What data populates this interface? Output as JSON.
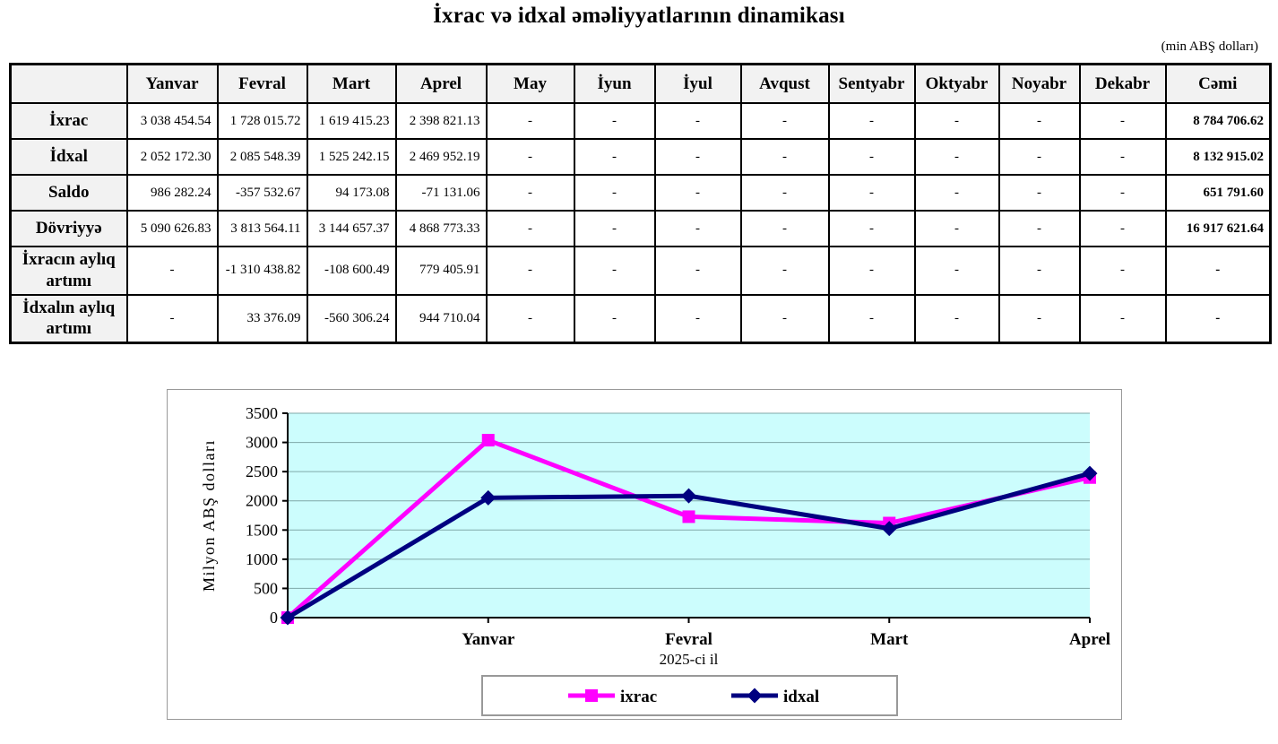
{
  "title": "İxrac və idxal əməliyyatlarının dinamikası",
  "unit_note": "(min ABŞ dolları)",
  "table": {
    "columns": [
      "",
      "Yanvar",
      "Fevral",
      "Mart",
      "Aprel",
      "May",
      "İyun",
      "İyul",
      "Avqust",
      "Sentyabr",
      "Oktyabr",
      "Noyabr",
      "Dekabr",
      "Cəmi"
    ],
    "rows": [
      {
        "label": "İxrac",
        "cells": [
          "3 038 454.54",
          "1 728 015.72",
          "1 619 415.23",
          "2 398 821.13",
          "-",
          "-",
          "-",
          "-",
          "-",
          "-",
          "-",
          "-",
          "8 784 706.62"
        ]
      },
      {
        "label": "İdxal",
        "cells": [
          "2 052 172.30",
          "2 085 548.39",
          "1 525 242.15",
          "2 469 952.19",
          "-",
          "-",
          "-",
          "-",
          "-",
          "-",
          "-",
          "-",
          "8 132 915.02"
        ]
      },
      {
        "label": "Saldo",
        "cells": [
          "986 282.24",
          "-357 532.67",
          "94 173.08",
          "-71 131.06",
          "-",
          "-",
          "-",
          "-",
          "-",
          "-",
          "-",
          "-",
          "651 791.60"
        ]
      },
      {
        "label": "Dövriyyə",
        "cells": [
          "5 090 626.83",
          "3 813 564.11",
          "3 144 657.37",
          "4 868 773.33",
          "-",
          "-",
          "-",
          "-",
          "-",
          "-",
          "-",
          "-",
          "16 917 621.64"
        ]
      },
      {
        "label": "İxracın aylıq artımı",
        "cells": [
          "-",
          "-1 310 438.82",
          "-108 600.49",
          "779 405.91",
          "-",
          "-",
          "-",
          "-",
          "-",
          "-",
          "-",
          "-",
          "-"
        ]
      },
      {
        "label": "İdxalın aylıq artımı",
        "cells": [
          "-",
          "33 376.09",
          "-560 306.24",
          "944 710.04",
          "-",
          "-",
          "-",
          "-",
          "-",
          "-",
          "-",
          "-",
          "-"
        ]
      }
    ]
  },
  "chart_data": {
    "type": "line",
    "x_categories": [
      "",
      "Yanvar",
      "Fevral",
      "Mart",
      "Aprel"
    ],
    "series": [
      {
        "name": "ixrac",
        "color": "#FF00FF",
        "marker": "square",
        "values": [
          0,
          3038.45,
          1728.02,
          1619.42,
          2398.82
        ]
      },
      {
        "name": "idxal",
        "color": "#000080",
        "marker": "diamond",
        "values": [
          0,
          2052.17,
          2085.55,
          1525.24,
          2469.95
        ]
      }
    ],
    "y_axis_title": "Milyon ABŞ dolları",
    "x_axis_title": "2025-ci il",
    "ylim": [
      0,
      3500
    ],
    "ytick_step": 500,
    "plot_bg": "#CCFDFD",
    "gridline_color": "#7FA8A8",
    "grid": true,
    "legend_position": "bottom"
  }
}
